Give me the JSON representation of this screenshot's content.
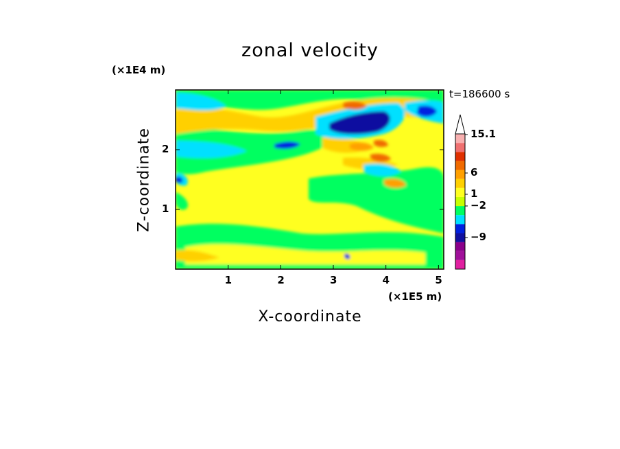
{
  "chart_data": {
    "type": "heatmap",
    "title": "zonal velocity",
    "xlabel": "X-coordinate",
    "ylabel": "Z-coordinate",
    "x_unit": "(×1E5 m)",
    "z_unit": "(×1E4 m)",
    "timestamp": "t=186600 s",
    "xlim": [
      0,
      5.1
    ],
    "zlim": [
      0,
      3.0
    ],
    "x_ticks": [
      1,
      2,
      3,
      4,
      5
    ],
    "z_ticks": [
      1,
      2
    ],
    "x_tick_labels": [
      "1",
      "2",
      "3",
      "4",
      "5"
    ],
    "z_tick_labels": [
      "1",
      "2"
    ],
    "colorbar": {
      "labels": [
        {
          "text": "15.1",
          "value": 15.1
        },
        {
          "text": "6",
          "value": 6
        },
        {
          "text": "1",
          "value": 1
        },
        {
          "text": "−2",
          "value": -2
        },
        {
          "text": "−9",
          "value": -9
        }
      ],
      "colors": [
        "#e020a0",
        "#a0109a",
        "#8a008a",
        "#1010a0",
        "#0020e0",
        "#00e0ff",
        "#00ff60",
        "#c8ff00",
        "#ffff20",
        "#ffd000",
        "#ffa000",
        "#f06a00",
        "#e03000",
        "#f07070",
        "#f8b0b0"
      ]
    },
    "contour_features": [
      {
        "x": 3.4,
        "z": 2.45,
        "level": "low"
      },
      {
        "x": 3.9,
        "z": 2.6,
        "level": "low"
      },
      {
        "x": 4.8,
        "z": 2.6,
        "level": "low"
      },
      {
        "x": 2.15,
        "z": 2.05,
        "level": "low"
      },
      {
        "x": 0.05,
        "z": 1.5,
        "level": "low"
      },
      {
        "x": 3.1,
        "z": 2.75,
        "level": "high"
      },
      {
        "x": 3.7,
        "z": 2.1,
        "level": "high"
      },
      {
        "x": 4.1,
        "z": 1.85,
        "level": "high"
      },
      {
        "x": 3.9,
        "z": 2.35,
        "level": "high"
      },
      {
        "x": 1.2,
        "z": 2.5,
        "level": "high"
      },
      {
        "x": 2.4,
        "z": 2.5,
        "level": "high"
      }
    ]
  }
}
